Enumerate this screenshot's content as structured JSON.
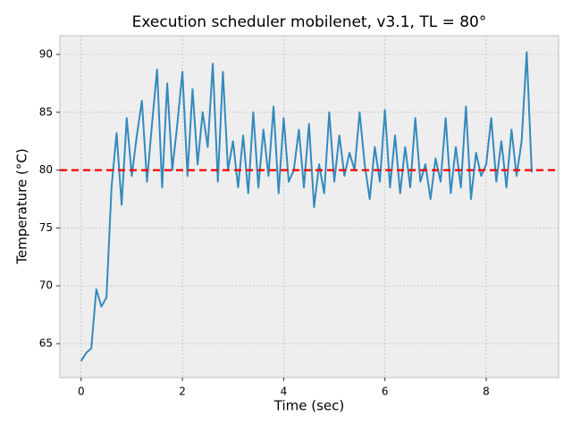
{
  "chart_data": {
    "type": "line",
    "title": "Execution scheduler mobilenet, v3.1, TL = 80°",
    "x_label": "Time (sec)",
    "y_label": "Temperature (°C)",
    "x": [
      0.0,
      0.1,
      0.2,
      0.3,
      0.4,
      0.5,
      0.6,
      0.7,
      0.8,
      0.9,
      1.0,
      1.1,
      1.2,
      1.3,
      1.4,
      1.5,
      1.6,
      1.7,
      1.8,
      1.9,
      2.0,
      2.1,
      2.2,
      2.3,
      2.4,
      2.5,
      2.6,
      2.7,
      2.8,
      2.9,
      3.0,
      3.1,
      3.2,
      3.3,
      3.4,
      3.5,
      3.6,
      3.7,
      3.8,
      3.9,
      4.0,
      4.1,
      4.2,
      4.3,
      4.4,
      4.5,
      4.6,
      4.7,
      4.8,
      4.9,
      5.0,
      5.1,
      5.2,
      5.3,
      5.4,
      5.5,
      5.6,
      5.7,
      5.8,
      5.9,
      6.0,
      6.1,
      6.2,
      6.3,
      6.4,
      6.5,
      6.6,
      6.7,
      6.8,
      6.9,
      7.0,
      7.1,
      7.2,
      7.3,
      7.4,
      7.5,
      7.6,
      7.7,
      7.8,
      7.9,
      8.0,
      8.1,
      8.2,
      8.3,
      8.4,
      8.5,
      8.6,
      8.7,
      8.8,
      8.9
    ],
    "series": [
      {
        "color": "#348abd",
        "values": [
          63.5,
          64.2,
          64.6,
          69.7,
          68.2,
          69.0,
          78.5,
          83.2,
          77.0,
          84.5,
          79.5,
          83.0,
          86.0,
          79.0,
          84.0,
          88.7,
          78.5,
          87.5,
          80.0,
          84.0,
          88.5,
          79.5,
          87.0,
          80.5,
          85.0,
          82.0,
          89.2,
          79.0,
          88.5,
          80.0,
          82.5,
          78.5,
          83.0,
          78.0,
          85.0,
          78.5,
          83.5,
          79.5,
          85.5,
          78.0,
          84.5,
          79.0,
          80.0,
          83.5,
          78.5,
          84.0,
          76.8,
          80.5,
          78.0,
          85.0,
          79.0,
          83.0,
          79.5,
          81.5,
          80.0,
          85.0,
          80.5,
          77.5,
          82.0,
          79.0,
          85.2,
          78.5,
          83.0,
          78.0,
          82.0,
          78.5,
          84.5,
          79.0,
          80.5,
          77.5,
          81.0,
          79.0,
          84.5,
          78.0,
          82.0,
          78.5,
          85.5,
          77.5,
          81.5,
          79.5,
          80.5,
          84.5,
          79.0,
          82.5,
          78.5,
          83.5,
          79.5,
          82.5,
          90.2,
          79.8
        ]
      }
    ],
    "threshold": {
      "value": 80,
      "color": "#ff0000"
    },
    "xlim": [
      -0.42,
      9.43
    ],
    "xticks": [
      0,
      2,
      4,
      6,
      8
    ],
    "ylim": [
      62.07,
      91.62
    ],
    "yticks": [
      65,
      70,
      75,
      80,
      85,
      90
    ],
    "grid": true
  }
}
